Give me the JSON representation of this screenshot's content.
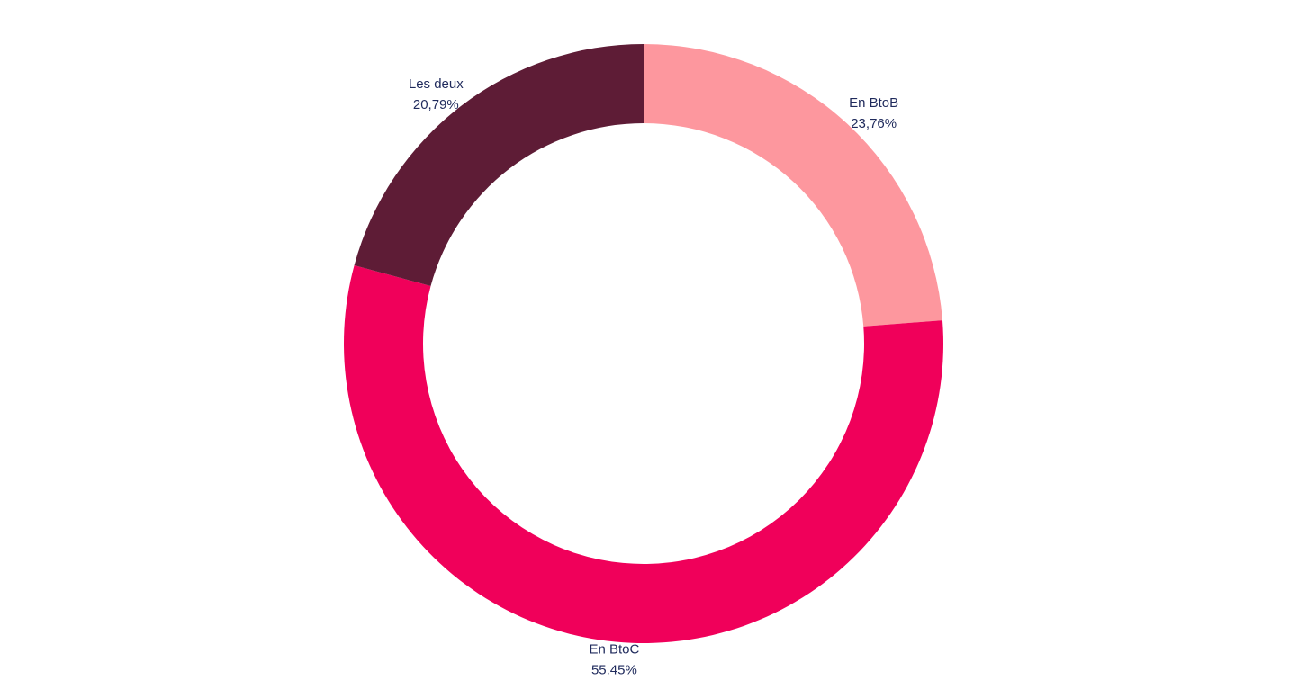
{
  "chart_data": {
    "type": "pie",
    "subtype": "donut",
    "start": "top",
    "direction": "clockwise",
    "label_color": "#1f2a5c",
    "slices": [
      {
        "label": "En BtoB",
        "value_label": "23,76%",
        "value": 23.76,
        "color": "#fd979e"
      },
      {
        "label": "En BtoC",
        "value_label": "55.45%",
        "value": 55.45,
        "color": "#f0005a"
      },
      {
        "label": "Les deux",
        "value_label": "20,79%",
        "value": 20.79,
        "color": "#5e1c36"
      }
    ]
  }
}
